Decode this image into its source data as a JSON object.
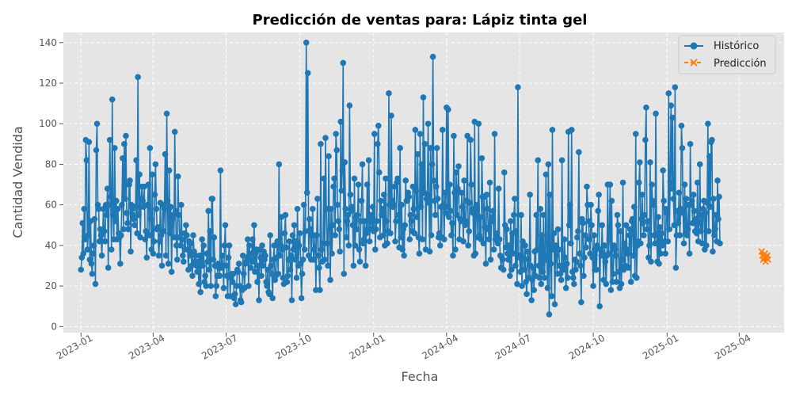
{
  "chart_data": {
    "type": "line",
    "title": "Predicción de ventas para: Lápiz tinta gel",
    "xlabel": "Fecha",
    "ylabel": "Cantidad Vendida",
    "x_range": [
      "2022-12-10",
      "2025-05-27"
    ],
    "ylim": [
      -3,
      145
    ],
    "yticks": [
      0,
      20,
      40,
      60,
      80,
      100,
      120,
      140
    ],
    "xticks": [
      "2023-01",
      "2023-04",
      "2023-07",
      "2023-10",
      "2024-01",
      "2024-04",
      "2024-07",
      "2024-10",
      "2025-01",
      "2025-04"
    ],
    "grid": true,
    "legend_position": "top-right",
    "series": [
      {
        "name": "Histórico",
        "color": "#1f77b4",
        "marker": "circle",
        "linestyle": "solid",
        "start_date": "2023-01-01",
        "step_days": 1,
        "values": [
          28,
          34,
          51,
          36,
          58,
          43,
          92,
          82,
          38,
          45,
          91,
          33,
          52,
          31,
          26,
          36,
          40,
          53,
          21,
          87,
          100,
          60,
          58,
          42,
          48,
          45,
          35,
          46,
          58,
          47,
          42,
          60,
          55,
          68,
          29,
          60,
          92,
          64,
          38,
          112,
          55,
          43,
          88,
          52,
          62,
          43,
          58,
          46,
          44,
          31,
          45,
          60,
          83,
          48,
          90,
          63,
          94,
          56,
          51,
          48,
          70,
          72,
          37,
          60,
          58,
          55,
          53,
          50,
          59,
          82,
          46,
          123,
          55,
          75,
          44,
          63,
          69,
          62,
          59,
          69,
          43,
          47,
          34,
          60,
          70,
          45,
          88,
          53,
          38,
          75,
          36,
          42,
          65,
          80,
          58,
          48,
          49,
          35,
          42,
          61,
          45,
          30,
          60,
          47,
          58,
          85,
          35,
          105,
          62,
          31,
          77,
          46,
          59,
          27,
          53,
          55,
          44,
          96,
          57,
          40,
          33,
          74,
          55,
          44,
          40,
          60,
          43,
          35,
          32,
          46,
          38,
          50,
          45,
          38,
          28,
          42,
          35,
          41,
          30,
          25,
          45,
          37,
          32,
          35,
          30,
          27,
          32,
          21,
          35,
          17,
          33,
          43,
          30,
          40,
          22,
          25,
          20,
          36,
          32,
          57,
          28,
          47,
          20,
          63,
          63,
          33,
          44,
          30,
          15,
          20,
          25,
          31,
          29,
          25,
          77,
          29,
          35,
          30,
          19,
          40,
          50,
          30,
          25,
          15,
          34,
          40,
          15,
          24,
          26,
          22,
          26,
          14,
          16,
          11,
          20,
          28,
          27,
          31,
          20,
          13,
          12,
          18,
          35,
          26,
          19,
          31,
          32,
          34,
          43,
          20,
          40,
          33,
          29,
          36,
          43,
          32,
          50,
          27,
          36,
          38,
          22,
          30,
          13,
          38,
          34,
          25,
          40,
          30,
          37,
          33,
          35,
          22,
          20,
          28,
          17,
          16,
          45,
          30,
          26,
          14,
          33,
          40,
          23,
          25,
          34,
          42,
          26,
          80,
          35,
          40,
          54,
          38,
          24,
          21,
          46,
          55,
          39,
          22,
          25,
          33,
          42,
          28,
          35,
          13,
          45,
          38,
          50,
          33,
          42,
          24,
          58,
          30,
          40,
          46,
          31,
          14,
          26,
          33,
          60,
          38,
          47,
          140,
          66,
          125,
          35,
          53,
          48,
          33,
          45,
          58,
          33,
          38,
          45,
          18,
          45,
          63,
          35,
          29,
          18,
          90,
          38,
          32,
          41,
          73,
          33,
          93,
          58,
          41,
          30,
          84,
          48,
          23,
          58,
          36,
          50,
          69,
          73,
          45,
          95,
          87,
          60,
          52,
          48,
          37,
          101,
          67,
          77,
          130,
          26,
          81,
          58,
          44,
          52,
          55,
          40,
          109,
          65,
          57,
          59,
          50,
          30,
          73,
          40,
          54,
          48,
          55,
          70,
          38,
          32,
          52,
          62,
          80,
          41,
          43,
          52,
          30,
          46,
          70,
          48,
          82,
          42,
          55,
          52,
          48,
          59,
          47,
          95,
          38,
          48,
          52,
          90,
          99,
          76,
          44,
          62,
          55,
          58,
          45,
          65,
          40,
          73,
          52,
          41,
          47,
          115,
          60,
          46,
          104,
          62,
          59,
          60,
          69,
          42,
          52,
          71,
          73,
          55,
          39,
          88,
          44,
          60,
          38,
          48,
          35,
          50,
          72,
          62,
          62,
          66,
          64,
          43,
          55,
          52,
          47,
          69,
          58,
          46,
          97,
          67,
          54,
          85,
          44,
          36,
          95,
          59,
          80,
          43,
          113,
          66,
          90,
          38,
          63,
          65,
          100,
          61,
          37,
          88,
          45,
          80,
          133,
          72,
          62,
          55,
          69,
          88,
          63,
          44,
          46,
          40,
          59,
          44,
          97,
          60,
          43,
          66,
          56,
          108,
          59,
          107,
          54,
          70,
          57,
          45,
          51,
          35,
          94,
          66,
          38,
          76,
          55,
          68,
          79,
          43,
          53,
          52,
          66,
          59,
          42,
          72,
          50,
          52,
          62,
          94,
          40,
          47,
          61,
          92,
          70,
          58,
          56,
          35,
          101,
          36,
          60,
          58,
          44,
          100,
          45,
          54,
          43,
          83,
          64,
          41,
          64,
          49,
          31,
          65,
          58,
          48,
          43,
          71,
          33,
          52,
          54,
          57,
          38,
          95,
          43,
          46,
          44,
          41,
          68,
          43,
          35,
          29,
          34,
          33,
          28,
          76,
          50,
          39,
          48,
          36,
          33,
          40,
          25,
          52,
          28,
          46,
          36,
          55,
          63,
          30,
          47,
          21,
          118,
          35,
          34,
          27,
          55,
          20,
          42,
          34,
          28,
          40,
          22,
          16,
          37,
          33,
          24,
          65,
          30,
          13,
          23,
          29,
          18,
          37,
          25,
          55,
          38,
          82,
          30,
          24,
          58,
          21,
          45,
          27,
          55,
          24,
          35,
          75,
          33,
          19,
          80,
          6,
          65,
          31,
          15,
          97,
          38,
          46,
          11,
          40,
          35,
          26,
          48,
          38,
          30,
          26,
          23,
          82,
          30,
          28,
          43,
          34,
          19,
          31,
          24,
          96,
          50,
          60,
          41,
          97,
          27,
          24,
          21,
          33,
          28,
          32,
          44,
          47,
          86,
          36,
          30,
          12,
          53,
          51,
          25,
          34,
          45,
          39,
          69,
          60,
          52,
          43,
          36,
          60,
          50,
          34,
          20,
          45,
          28,
          38,
          28,
          40,
          57,
          65,
          10,
          38,
          35,
          50,
          36,
          23,
          40,
          32,
          21,
          35,
          70,
          36,
          43,
          70,
          18,
          62,
          22,
          26,
          40,
          38,
          35,
          22,
          55,
          50,
          27,
          19,
          47,
          21,
          33,
          71,
          28,
          41,
          30,
          50,
          38,
          36,
          29,
          45,
          48,
          22,
          52,
          53,
          35,
          59,
          25,
          95,
          24,
          40,
          42,
          71,
          81,
          41,
          53,
          65,
          51,
          45,
          55,
          92,
          108,
          48,
          52,
          34,
          40,
          81,
          32,
          70,
          62,
          60,
          45,
          41,
          105,
          46,
          32,
          54,
          31,
          49,
          36,
          46,
          40,
          77,
          62,
          42,
          36,
          58,
          56,
          42,
          115,
          48,
          71,
          109,
          68,
          103,
          63,
          50,
          118,
          29,
          45,
          57,
          51,
          66,
          45,
          58,
          99,
          88,
          56,
          41,
          70,
          46,
          63,
          45,
          48,
          60,
          36,
          90,
          60,
          62,
          51,
          65,
          57,
          47,
          53,
          46,
          71,
          42,
          51,
          80,
          47,
          55,
          41,
          58,
          62,
          38,
          56,
          40,
          61,
          100,
          47,
          84,
          59,
          91,
          92,
          37,
          63,
          45,
          48,
          55,
          42,
          72,
          53,
          64,
          41
        ],
        "value_labels": null
      },
      {
        "name": "Predicción",
        "color": "#ff7f0e",
        "marker": "x",
        "linestyle": "dashed",
        "start_date": "2025-04-29",
        "step_days": 1,
        "values": [
          37,
          35,
          33,
          34,
          36,
          32,
          34,
          35,
          33
        ]
      }
    ]
  }
}
